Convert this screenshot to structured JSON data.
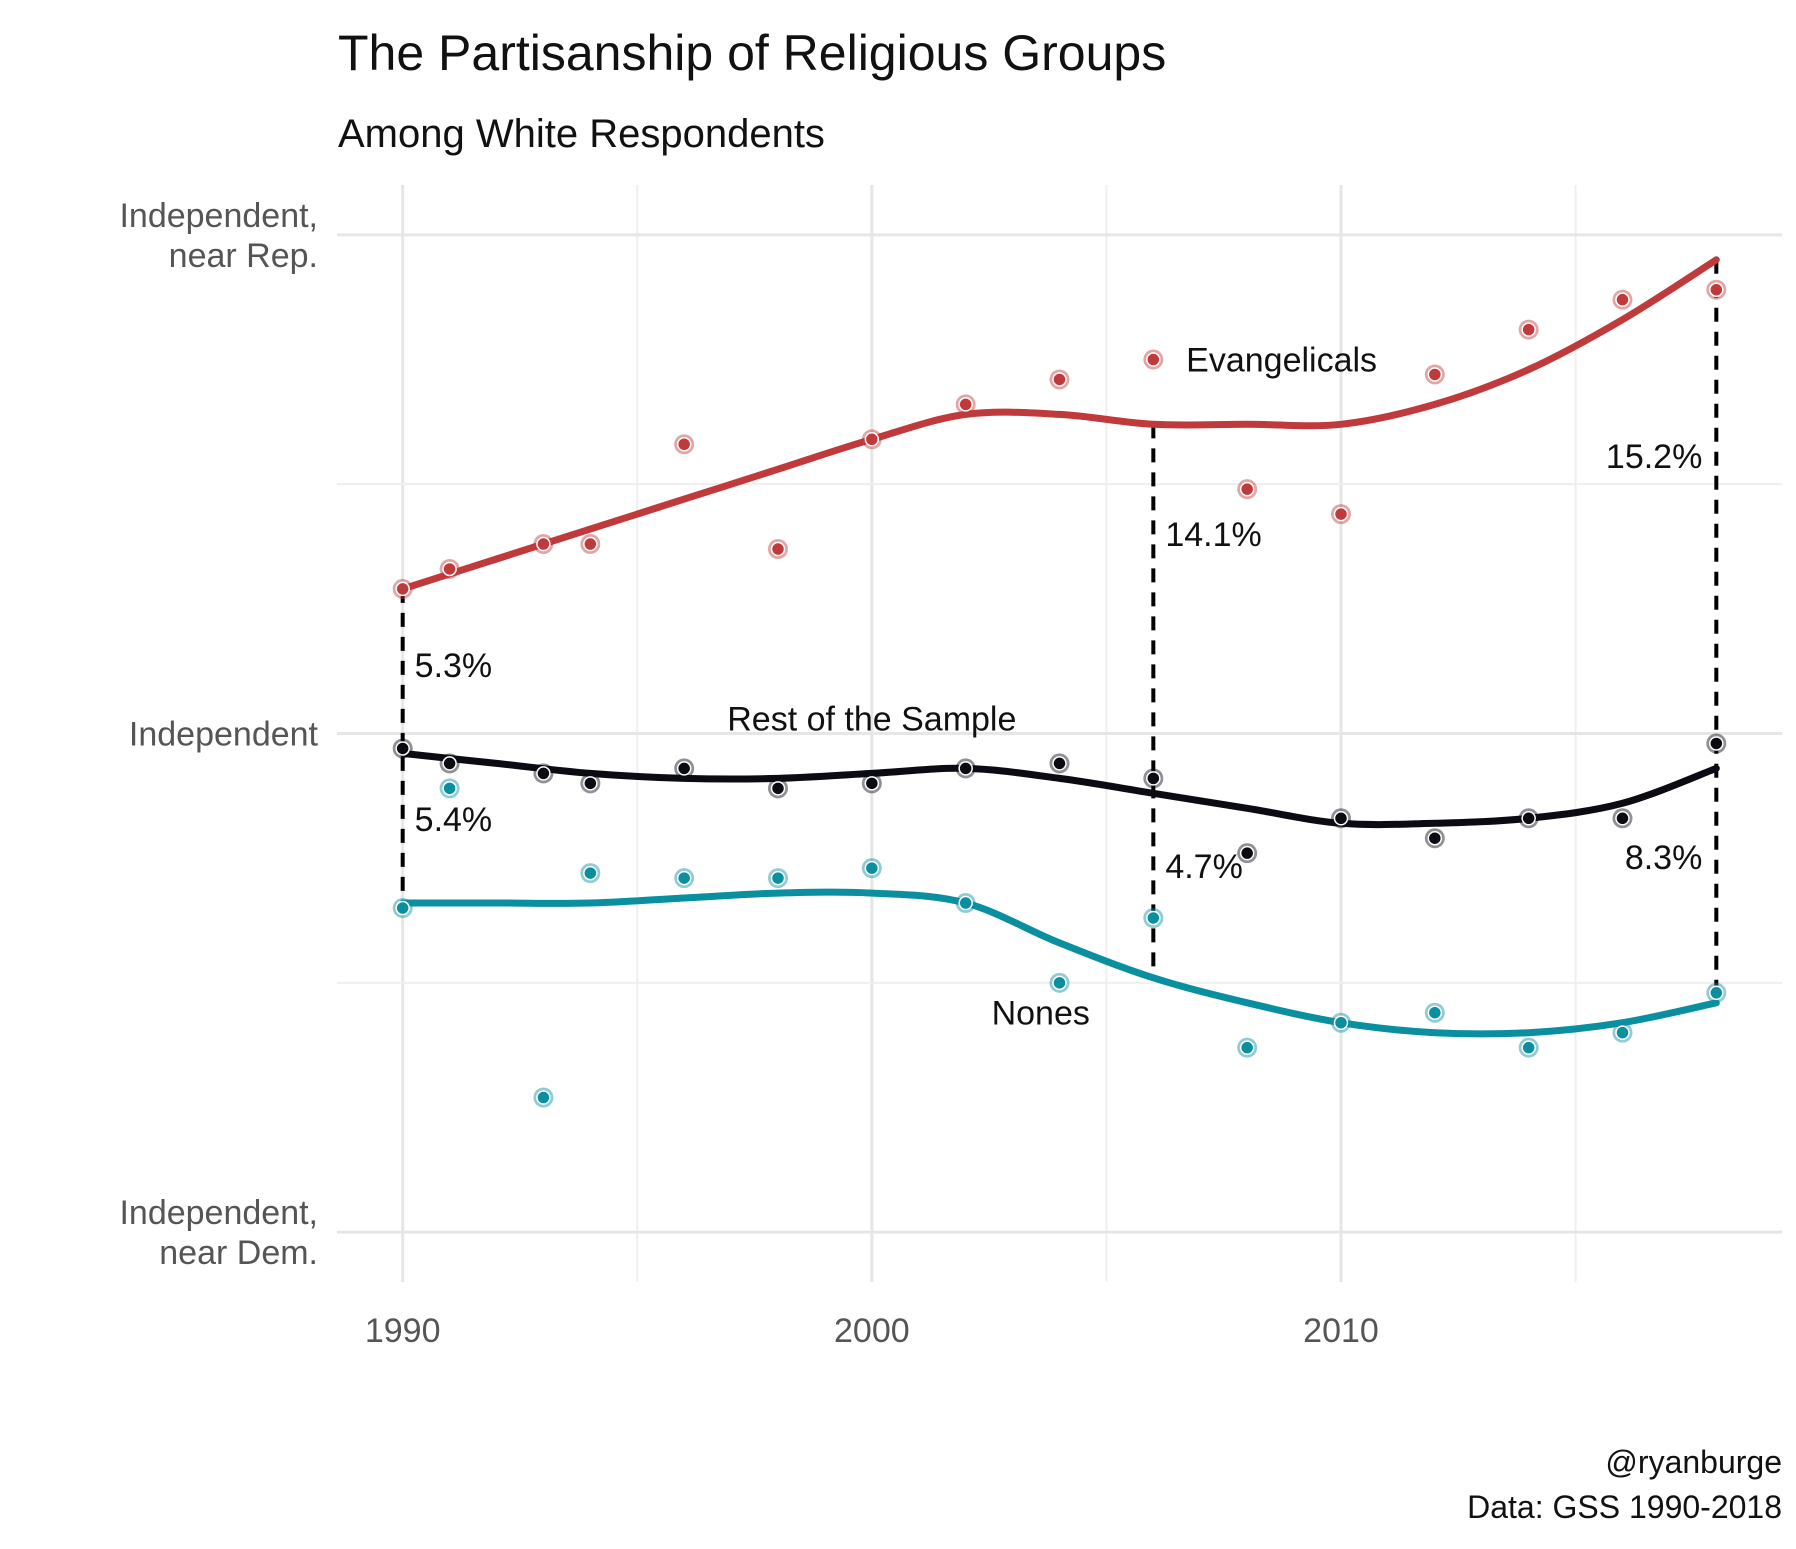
{
  "chart_data": {
    "type": "scatter",
    "title": "The Partisanship of Religious Groups",
    "subtitle": "Among White Respondents",
    "xlabel": "",
    "ylabel": "",
    "xlim": [
      1988.6,
      2019.4
    ],
    "ylim": [
      2.9,
      5.1
    ],
    "x_ticks": [
      {
        "value": 1990,
        "label": "1990"
      },
      {
        "value": 2000,
        "label": "2000"
      },
      {
        "value": 2010,
        "label": "2010"
      }
    ],
    "y_ticks": [
      {
        "value": 3,
        "label_lines": [
          "Independent,",
          "near Dem."
        ]
      },
      {
        "value": 4,
        "label_lines": [
          "Independent"
        ]
      },
      {
        "value": 5,
        "label_lines": [
          "Independent,",
          "near Rep."
        ]
      }
    ],
    "grid": true,
    "series": [
      {
        "name": "Evangelicals",
        "color": "#c0393b",
        "points": [
          [
            1990,
            4.29
          ],
          [
            1991,
            4.33
          ],
          [
            1993,
            4.38
          ],
          [
            1994,
            4.38
          ],
          [
            1996,
            4.58
          ],
          [
            1998,
            4.37
          ],
          [
            2000,
            4.59
          ],
          [
            2002,
            4.66
          ],
          [
            2004,
            4.71
          ],
          [
            2006,
            4.75
          ],
          [
            2008,
            4.49
          ],
          [
            2010,
            4.44
          ],
          [
            2012,
            4.72
          ],
          [
            2014,
            4.81
          ],
          [
            2016,
            4.87
          ],
          [
            2018,
            4.89
          ]
        ],
        "smooth": [
          [
            1990,
            4.29
          ],
          [
            1992,
            4.35
          ],
          [
            1994,
            4.41
          ],
          [
            1996,
            4.47
          ],
          [
            1998,
            4.53
          ],
          [
            2000,
            4.59
          ],
          [
            2002,
            4.64
          ],
          [
            2004,
            4.64
          ],
          [
            2006,
            4.62
          ],
          [
            2008,
            4.62
          ],
          [
            2010,
            4.62
          ],
          [
            2012,
            4.66
          ],
          [
            2014,
            4.73
          ],
          [
            2016,
            4.83
          ],
          [
            2018,
            4.95
          ]
        ]
      },
      {
        "name": "Rest of the Sample",
        "color": "#0b0b14",
        "points": [
          [
            1990,
            3.97
          ],
          [
            1991,
            3.94
          ],
          [
            1993,
            3.92
          ],
          [
            1994,
            3.9
          ],
          [
            1996,
            3.93
          ],
          [
            1998,
            3.89
          ],
          [
            2000,
            3.9
          ],
          [
            2002,
            3.93
          ],
          [
            2004,
            3.94
          ],
          [
            2006,
            3.91
          ],
          [
            2008,
            3.76
          ],
          [
            2010,
            3.83
          ],
          [
            2012,
            3.79
          ],
          [
            2014,
            3.83
          ],
          [
            2016,
            3.83
          ],
          [
            2018,
            3.98
          ]
        ],
        "smooth": [
          [
            1990,
            3.96
          ],
          [
            1992,
            3.94
          ],
          [
            1994,
            3.92
          ],
          [
            1996,
            3.91
          ],
          [
            1998,
            3.91
          ],
          [
            2000,
            3.92
          ],
          [
            2002,
            3.93
          ],
          [
            2004,
            3.91
          ],
          [
            2006,
            3.88
          ],
          [
            2008,
            3.85
          ],
          [
            2010,
            3.82
          ],
          [
            2012,
            3.82
          ],
          [
            2014,
            3.83
          ],
          [
            2016,
            3.86
          ],
          [
            2018,
            3.93
          ]
        ]
      },
      {
        "name": "Nones",
        "color": "#0a8fa0",
        "points": [
          [
            1990,
            3.65
          ],
          [
            1991,
            3.89
          ],
          [
            1993,
            3.27
          ],
          [
            1994,
            3.72
          ],
          [
            1996,
            3.71
          ],
          [
            1998,
            3.71
          ],
          [
            2000,
            3.73
          ],
          [
            2002,
            3.66
          ],
          [
            2004,
            3.5
          ],
          [
            2006,
            3.63
          ],
          [
            2008,
            3.37
          ],
          [
            2010,
            3.42
          ],
          [
            2012,
            3.44
          ],
          [
            2014,
            3.37
          ],
          [
            2016,
            3.4
          ],
          [
            2018,
            3.48
          ]
        ],
        "smooth": [
          [
            1990,
            3.66
          ],
          [
            1992,
            3.66
          ],
          [
            1994,
            3.66
          ],
          [
            1996,
            3.67
          ],
          [
            1998,
            3.68
          ],
          [
            2000,
            3.68
          ],
          [
            2002,
            3.66
          ],
          [
            2004,
            3.58
          ],
          [
            2006,
            3.51
          ],
          [
            2008,
            3.46
          ],
          [
            2010,
            3.42
          ],
          [
            2012,
            3.4
          ],
          [
            2014,
            3.4
          ],
          [
            2016,
            3.42
          ],
          [
            2018,
            3.46
          ]
        ]
      }
    ],
    "gap_annotations": [
      {
        "x": 1990,
        "y_top": 4.29,
        "y_bottom": 3.66,
        "upper_label": "5.3%",
        "lower_label": "5.4%",
        "side": "right"
      },
      {
        "x": 2006,
        "y_top": 4.62,
        "y_bottom": 3.51,
        "upper_label": "14.1%",
        "lower_label": "4.7%",
        "side": "right"
      },
      {
        "x": 2018,
        "y_top": 4.95,
        "y_bottom": 3.46,
        "upper_label": "15.2%",
        "lower_label": "8.3%",
        "side": "left"
      }
    ],
    "series_labels": [
      {
        "text": "Evangelicals",
        "x": 2006.7,
        "y": 4.75,
        "anchor": "start"
      },
      {
        "text": "Rest of the Sample",
        "x": 2000,
        "y": 4.03,
        "anchor": "middle"
      },
      {
        "text": "Nones",
        "x": 2003.6,
        "y": 3.44,
        "anchor": "middle"
      }
    ]
  },
  "caption": {
    "line1": "@ryanburge",
    "line2": "Data: GSS 1990-2018"
  }
}
